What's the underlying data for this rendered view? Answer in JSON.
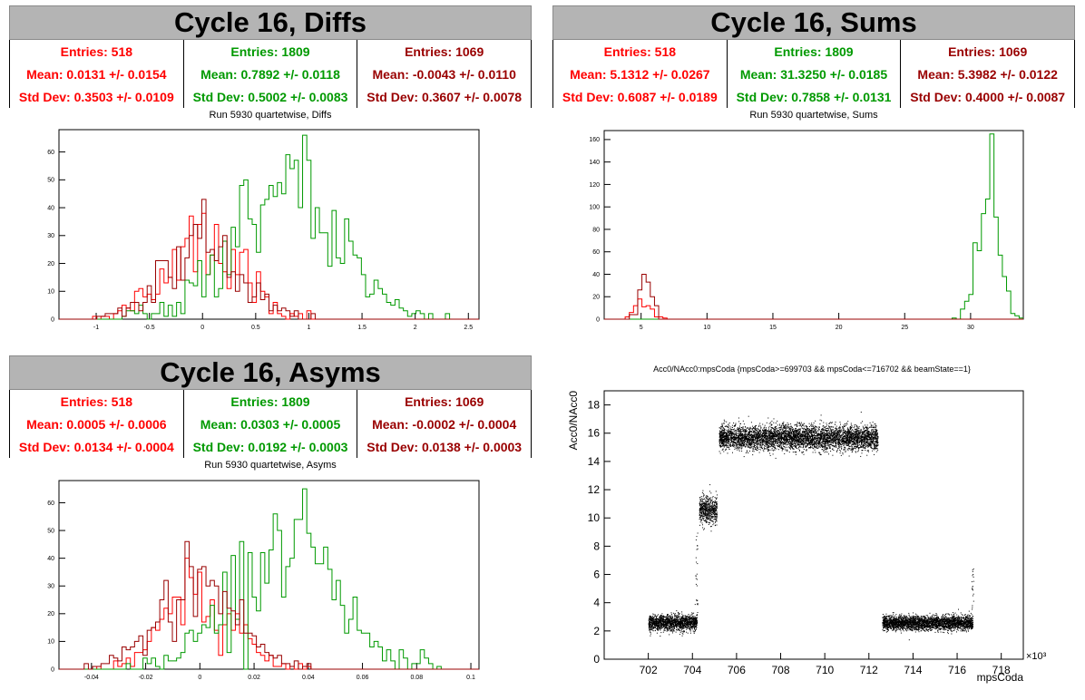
{
  "colors": {
    "red": "#ff0000",
    "green": "#009900",
    "darkred": "#990000"
  },
  "panels": [
    {
      "title": "Cycle 16, Diffs",
      "subtitle": "Run 5930 quartetwise, Diffs",
      "stats": [
        {
          "entries": "Entries: 518",
          "mean": "Mean: 0.0131 +/- 0.0154",
          "std": "Std Dev: 0.3503 +/- 0.0109"
        },
        {
          "entries": "Entries: 1809",
          "mean": "Mean: 0.7892 +/- 0.0118",
          "std": "Std Dev: 0.5002 +/- 0.0083"
        },
        {
          "entries": "Entries: 1069",
          "mean": "Mean: -0.0043 +/- 0.0110",
          "std": "Std Dev: 0.3607 +/- 0.0078"
        }
      ]
    },
    {
      "title": "Cycle 16, Sums",
      "subtitle": "Run 5930 quartetwise, Sums",
      "stats": [
        {
          "entries": "Entries: 518",
          "mean": "Mean: 5.1312 +/- 0.0267",
          "std": "Std Dev: 0.6087 +/- 0.0189"
        },
        {
          "entries": "Entries: 1809",
          "mean": "Mean: 31.3250 +/- 0.0185",
          "std": "Std Dev: 0.7858 +/- 0.0131"
        },
        {
          "entries": "Entries: 1069",
          "mean": "Mean: 5.3982 +/- 0.0122",
          "std": "Std Dev: 0.4000 +/- 0.0087"
        }
      ]
    },
    {
      "title": "Cycle 16, Asyms",
      "subtitle": "Run 5930 quartetwise, Asyms",
      "stats": [
        {
          "entries": "Entries: 518",
          "mean": "Mean: 0.0005 +/- 0.0006",
          "std": "Std Dev: 0.0134 +/- 0.0004"
        },
        {
          "entries": "Entries: 1809",
          "mean": "Mean: 0.0303 +/- 0.0005",
          "std": "Std Dev: 0.0192 +/- 0.0003"
        },
        {
          "entries": "Entries: 1069",
          "mean": "Mean: -0.0002 +/- 0.0004",
          "std": "Std Dev: 0.0138 +/- 0.0003"
        }
      ]
    }
  ],
  "chart_data": [
    {
      "type": "histogram",
      "xlim": [
        -1.35,
        2.6
      ],
      "ylim": [
        0,
        68
      ],
      "xticks": [
        -1,
        -0.5,
        0,
        0.5,
        1,
        1.5,
        2,
        2.5
      ],
      "yticks": [
        0,
        10,
        20,
        30,
        40,
        50,
        60
      ],
      "xtick_labels": [
        "-1",
        "-0.5",
        "0",
        "0.5",
        "1",
        "1.5",
        "2",
        "2.5"
      ],
      "ytick_labels": [
        "0",
        "10",
        "20",
        "30",
        "40",
        "50",
        "60"
      ],
      "grid": false,
      "series": [
        {
          "color": "red",
          "mean": 0.0131,
          "std": 0.3503,
          "entries": 518,
          "peak": 38
        },
        {
          "color": "green",
          "mean": 0.7892,
          "std": 0.5002,
          "entries": 1809,
          "peak": 66
        },
        {
          "color": "darkred",
          "mean": -0.0043,
          "std": 0.3607,
          "entries": 1069,
          "peak": 43
        }
      ]
    },
    {
      "type": "histogram",
      "xlim": [
        2.2,
        34
      ],
      "ylim": [
        0,
        168
      ],
      "xticks": [
        5,
        10,
        15,
        20,
        25,
        30
      ],
      "yticks": [
        0,
        20,
        40,
        60,
        80,
        100,
        120,
        140,
        160
      ],
      "xtick_labels": [
        "5",
        "10",
        "15",
        "20",
        "25",
        "30"
      ],
      "ytick_labels": [
        "0",
        "20",
        "40",
        "60",
        "80",
        "100",
        "120",
        "140",
        "160"
      ],
      "grid": false,
      "series": [
        {
          "color": "red",
          "mean": 5.1312,
          "std": 0.6087,
          "entries": 518,
          "peak": 18
        },
        {
          "color": "green",
          "mean": 31.325,
          "std": 0.7858,
          "entries": 1809,
          "peak": 165
        },
        {
          "color": "darkred",
          "mean": 5.3982,
          "std": 0.4,
          "entries": 1069,
          "peak": 40
        }
      ]
    },
    {
      "type": "histogram",
      "xlim": [
        -0.052,
        0.103
      ],
      "ylim": [
        0,
        68
      ],
      "xticks": [
        -0.04,
        -0.02,
        0,
        0.02,
        0.04,
        0.06,
        0.08,
        0.1
      ],
      "yticks": [
        0,
        10,
        20,
        30,
        40,
        50,
        60
      ],
      "xtick_labels": [
        "-0.04",
        "-0.02",
        "0",
        "0.02",
        "0.04",
        "0.06",
        "0.08",
        "0.1"
      ],
      "ytick_labels": [
        "0",
        "10",
        "20",
        "30",
        "40",
        "50",
        "60"
      ],
      "grid": false,
      "series": [
        {
          "color": "red",
          "mean": 0.0005,
          "std": 0.0134,
          "entries": 518,
          "peak": 40
        },
        {
          "color": "green",
          "mean": 0.0303,
          "std": 0.0192,
          "entries": 1809,
          "peak": 65
        },
        {
          "color": "darkred",
          "mean": -0.0002,
          "std": 0.0138,
          "entries": 1069,
          "peak": 46
        }
      ]
    },
    {
      "type": "scatter",
      "title": "Acc0/NAcc0:mpsCoda {mpsCoda>=699703 && mpsCoda<=716702 && beamState==1}",
      "xlabel": "mpsCoda",
      "ylabel": "Acc0/NAcc0",
      "x_multiplier": "×10³",
      "xlim": [
        700,
        719
      ],
      "ylim": [
        0,
        19
      ],
      "xticks": [
        702,
        704,
        706,
        708,
        710,
        712,
        714,
        716,
        718
      ],
      "yticks": [
        0,
        2,
        4,
        6,
        8,
        10,
        12,
        14,
        16,
        18
      ],
      "xtick_labels": [
        "702",
        "704",
        "706",
        "708",
        "710",
        "712",
        "714",
        "716",
        "718"
      ],
      "ytick_labels": [
        "0",
        "2",
        "4",
        "6",
        "8",
        "10",
        "12",
        "14",
        "16",
        "18"
      ],
      "color": "#000000",
      "clusters": [
        {
          "x": [
            702.0,
            704.2
          ],
          "y_mean": 2.6,
          "y_spread": 0.55
        },
        {
          "x": [
            704.3,
            705.1
          ],
          "y_mean": 10.6,
          "y_spread": 1.0
        },
        {
          "x": [
            705.2,
            712.4
          ],
          "y_mean": 15.7,
          "y_spread": 0.85
        },
        {
          "x": [
            712.6,
            716.7
          ],
          "y_mean": 2.6,
          "y_spread": 0.5
        }
      ]
    }
  ]
}
